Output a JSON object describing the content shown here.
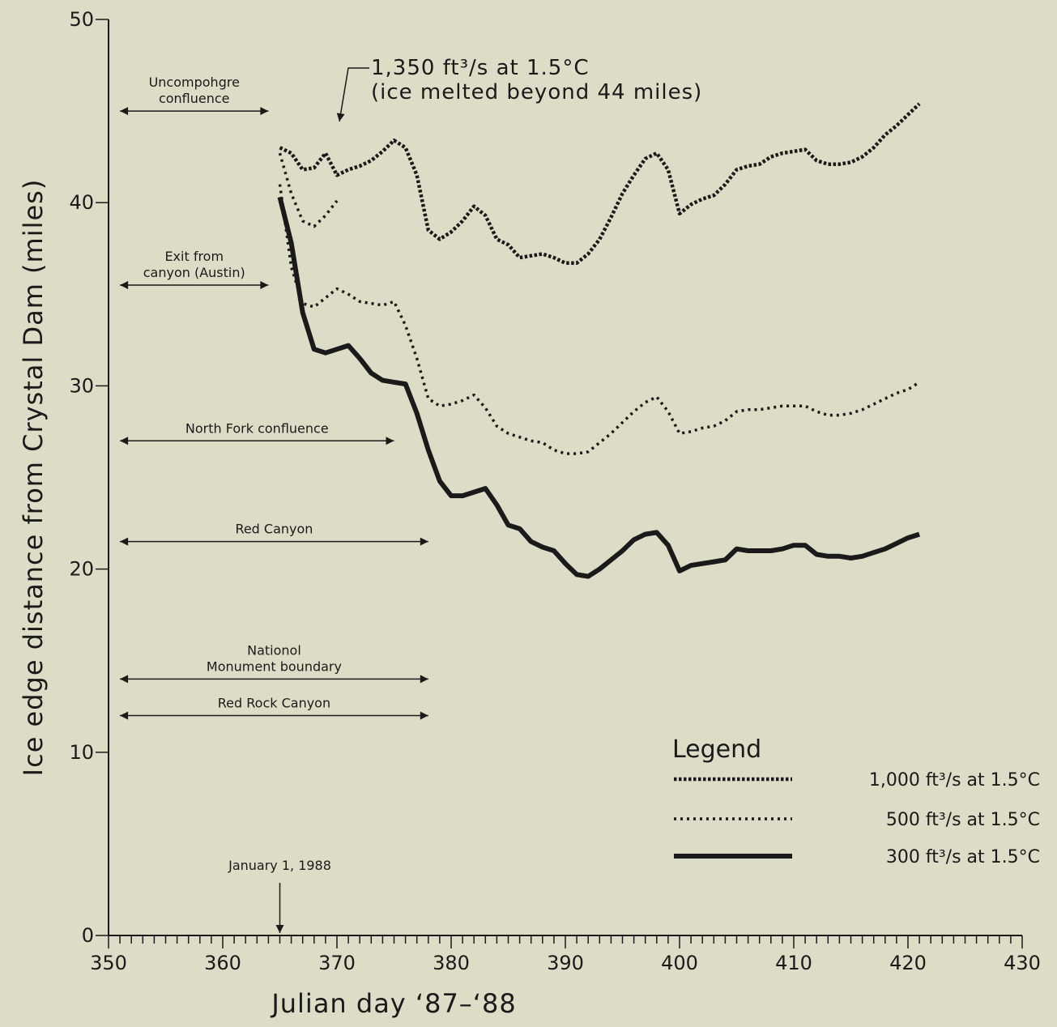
{
  "chart_data": {
    "type": "line",
    "xlabel": "Julian day ‘87–‘88",
    "ylabel": "Ice edge distance from Crystal Dam (miles)",
    "xlim": [
      350,
      430
    ],
    "ylim": [
      0,
      50
    ],
    "x_ticks": [
      350,
      360,
      370,
      380,
      390,
      400,
      410,
      420,
      430
    ],
    "y_ticks": [
      0,
      10,
      20,
      30,
      40,
      50
    ],
    "grid": false,
    "legend_position": "bottom-right",
    "legend_title": "Legend",
    "series": [
      {
        "name": "1,000 ft³/s at 1.5°C",
        "style": "dense-dotted",
        "points": [
          [
            365,
            43
          ],
          [
            366,
            42.7
          ],
          [
            367,
            41.8
          ],
          [
            368,
            41.9
          ],
          [
            369,
            42.7
          ],
          [
            370,
            41.5
          ],
          [
            371,
            41.8
          ],
          [
            372,
            42
          ],
          [
            373,
            42.3
          ],
          [
            374,
            42.8
          ],
          [
            375,
            43.4
          ],
          [
            376,
            43
          ],
          [
            377,
            41.5
          ],
          [
            378,
            38.5
          ],
          [
            379,
            38
          ],
          [
            380,
            38.4
          ],
          [
            381,
            39
          ],
          [
            382,
            39.8
          ],
          [
            383,
            39.3
          ],
          [
            384,
            38
          ],
          [
            385,
            37.7
          ],
          [
            386,
            37
          ],
          [
            387,
            37.1
          ],
          [
            388,
            37.2
          ],
          [
            389,
            37
          ],
          [
            390,
            36.7
          ],
          [
            391,
            36.7
          ],
          [
            392,
            37.2
          ],
          [
            393,
            38
          ],
          [
            394,
            39.2
          ],
          [
            395,
            40.5
          ],
          [
            396,
            41.5
          ],
          [
            397,
            42.4
          ],
          [
            398,
            42.7
          ],
          [
            399,
            41.8
          ],
          [
            400,
            39.4
          ],
          [
            401,
            39.9
          ],
          [
            402,
            40.2
          ],
          [
            403,
            40.4
          ],
          [
            404,
            41
          ],
          [
            405,
            41.8
          ],
          [
            406,
            42
          ],
          [
            407,
            42.1
          ],
          [
            408,
            42.5
          ],
          [
            409,
            42.7
          ],
          [
            410,
            42.8
          ],
          [
            411,
            42.9
          ],
          [
            412,
            42.3
          ],
          [
            413,
            42.1
          ],
          [
            414,
            42.1
          ],
          [
            415,
            42.2
          ],
          [
            416,
            42.5
          ],
          [
            417,
            43
          ],
          [
            418,
            43.7
          ],
          [
            419,
            44.2
          ],
          [
            420,
            44.8
          ],
          [
            421,
            45.4
          ]
        ]
      },
      {
        "name": "500 ft³/s at 1.5°C",
        "style": "sparse-dotted",
        "points": [
          [
            365,
            42.7
          ],
          [
            366,
            40.5
          ],
          [
            367,
            39
          ],
          [
            368,
            38.7
          ],
          [
            369,
            39.3
          ],
          [
            370,
            40.1
          ],
          [
            365,
            41
          ],
          [
            366,
            36.5
          ],
          [
            367,
            34.5
          ],
          [
            368,
            34.3
          ],
          [
            369,
            34.8
          ],
          [
            370,
            35.3
          ],
          [
            371,
            35
          ],
          [
            372,
            34.6
          ],
          [
            373,
            34.5
          ],
          [
            374,
            34.4
          ],
          [
            375,
            34.6
          ],
          [
            376,
            33.3
          ],
          [
            377,
            31.5
          ],
          [
            378,
            29.3
          ],
          [
            379,
            28.9
          ],
          [
            380,
            29
          ],
          [
            381,
            29.2
          ],
          [
            382,
            29.5
          ],
          [
            383,
            28.8
          ],
          [
            384,
            27.8
          ],
          [
            385,
            27.4
          ],
          [
            386,
            27.2
          ],
          [
            387,
            27
          ],
          [
            388,
            26.9
          ],
          [
            389,
            26.5
          ],
          [
            390,
            26.3
          ],
          [
            391,
            26.3
          ],
          [
            392,
            26.4
          ],
          [
            393,
            26.9
          ],
          [
            394,
            27.4
          ],
          [
            395,
            28
          ],
          [
            396,
            28.6
          ],
          [
            397,
            29.1
          ],
          [
            398,
            29.4
          ],
          [
            399,
            28.6
          ],
          [
            400,
            27.4
          ],
          [
            401,
            27.5
          ],
          [
            402,
            27.7
          ],
          [
            403,
            27.8
          ],
          [
            404,
            28.1
          ],
          [
            405,
            28.6
          ],
          [
            406,
            28.7
          ],
          [
            407,
            28.7
          ],
          [
            408,
            28.8
          ],
          [
            409,
            28.9
          ],
          [
            410,
            28.9
          ],
          [
            411,
            28.9
          ],
          [
            412,
            28.6
          ],
          [
            413,
            28.4
          ],
          [
            414,
            28.4
          ],
          [
            415,
            28.5
          ],
          [
            416,
            28.7
          ],
          [
            417,
            29
          ],
          [
            418,
            29.3
          ],
          [
            419,
            29.6
          ],
          [
            420,
            29.8
          ],
          [
            421,
            30.2
          ]
        ]
      },
      {
        "name": "300 ft³/s at 1.5°C",
        "style": "solid",
        "points": [
          [
            365,
            40.3
          ],
          [
            366,
            37.8
          ],
          [
            367,
            34
          ],
          [
            368,
            32
          ],
          [
            369,
            31.8
          ],
          [
            370,
            32
          ],
          [
            371,
            32.2
          ],
          [
            372,
            31.5
          ],
          [
            373,
            30.7
          ],
          [
            374,
            30.3
          ],
          [
            375,
            30.2
          ],
          [
            376,
            30.1
          ],
          [
            377,
            28.5
          ],
          [
            378,
            26.5
          ],
          [
            379,
            24.8
          ],
          [
            380,
            24
          ],
          [
            381,
            24
          ],
          [
            382,
            24.2
          ],
          [
            383,
            24.4
          ],
          [
            384,
            23.5
          ],
          [
            385,
            22.4
          ],
          [
            386,
            22.2
          ],
          [
            387,
            21.5
          ],
          [
            388,
            21.2
          ],
          [
            389,
            21
          ],
          [
            390,
            20.3
          ],
          [
            391,
            19.7
          ],
          [
            392,
            19.6
          ],
          [
            393,
            20
          ],
          [
            394,
            20.5
          ],
          [
            395,
            21
          ],
          [
            396,
            21.6
          ],
          [
            397,
            21.9
          ],
          [
            398,
            22
          ],
          [
            399,
            21.3
          ],
          [
            400,
            19.9
          ],
          [
            401,
            20.2
          ],
          [
            402,
            20.3
          ],
          [
            403,
            20.4
          ],
          [
            404,
            20.5
          ],
          [
            405,
            21.1
          ],
          [
            406,
            21
          ],
          [
            407,
            21
          ],
          [
            408,
            21
          ],
          [
            409,
            21.1
          ],
          [
            410,
            21.3
          ],
          [
            411,
            21.3
          ],
          [
            412,
            20.8
          ],
          [
            413,
            20.7
          ],
          [
            414,
            20.7
          ],
          [
            415,
            20.6
          ],
          [
            416,
            20.7
          ],
          [
            417,
            20.9
          ],
          [
            418,
            21.1
          ],
          [
            419,
            21.4
          ],
          [
            420,
            21.7
          ],
          [
            421,
            21.9
          ]
        ]
      }
    ],
    "range_annotations": [
      {
        "text_lines": [
          "Uncompohgre",
          "confluence"
        ],
        "x_start": 351,
        "x_end": 364,
        "y": 45
      },
      {
        "text_lines": [
          "Exit from",
          "canyon (Austin)"
        ],
        "x_start": 351,
        "x_end": 364,
        "y": 35.5
      },
      {
        "text_lines": [
          "North Fork confluence"
        ],
        "x_start": 351,
        "x_end": 375,
        "y": 27
      },
      {
        "text_lines": [
          "Red Canyon"
        ],
        "x_start": 351,
        "x_end": 378,
        "y": 21.5
      },
      {
        "text_lines": [
          "Nationol",
          "Monument boundary"
        ],
        "x_start": 351,
        "x_end": 378,
        "y": 14
      },
      {
        "text_lines": [
          "Red Rock Canyon"
        ],
        "x_start": 351,
        "x_end": 378,
        "y": 12
      }
    ],
    "callouts": [
      {
        "id": "flow1350",
        "line1": "1,350 ft³/s at 1.5°C",
        "line2": "(ice melted beyond 44 miles)"
      },
      {
        "id": "jan1",
        "text": "January 1, 1988",
        "x": 365
      }
    ]
  }
}
